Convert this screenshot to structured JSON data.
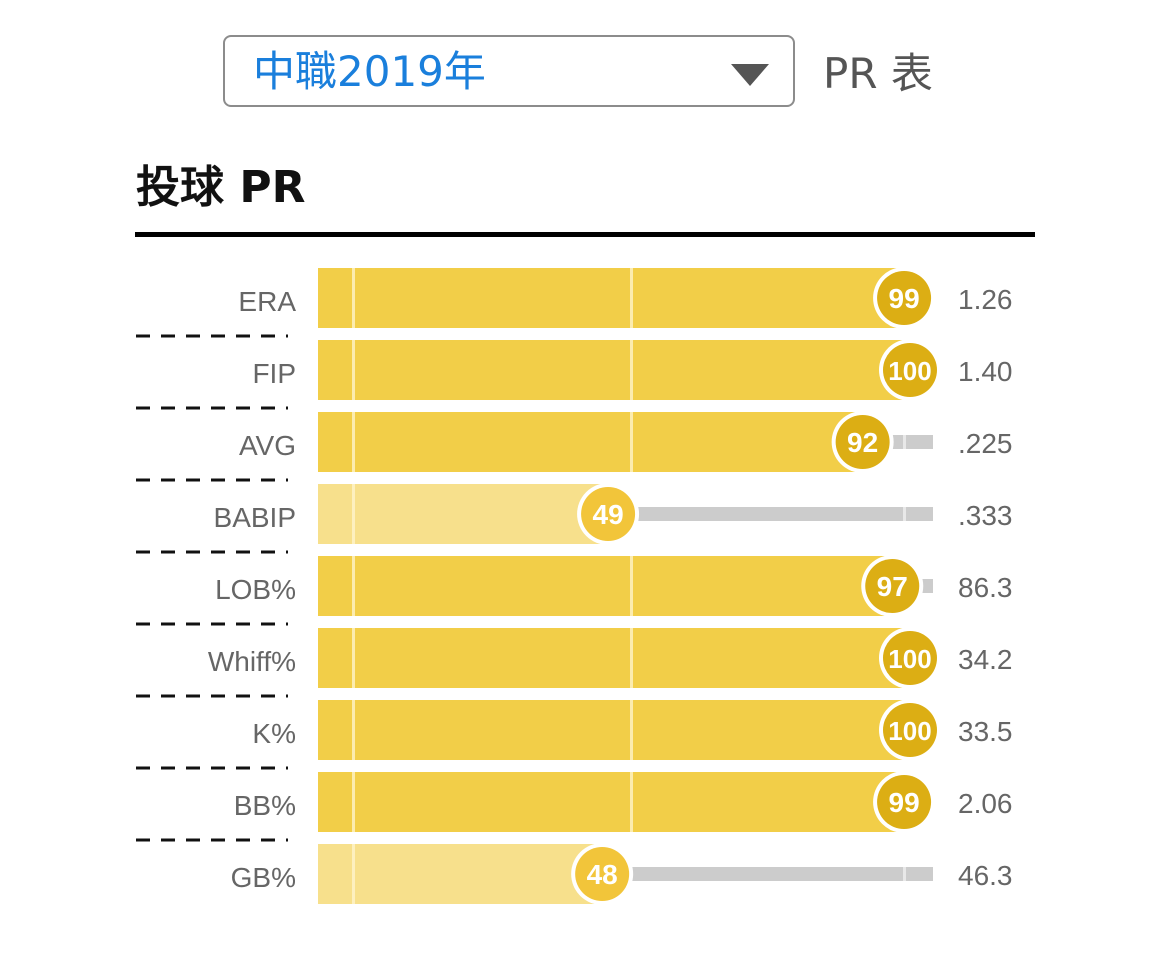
{
  "selector": {
    "value": "中職2019年"
  },
  "header": {
    "table_label": "PR 表"
  },
  "section": {
    "title": "投球 PR"
  },
  "colors": {
    "bar_high": "#f2ce48",
    "bar_low": "#f7e08c",
    "badge_high": "#dcae14",
    "badge_low": "#f2c53a",
    "track": "#cccccc",
    "selector_text": "#1a7fdc"
  },
  "chart_data": {
    "type": "bar",
    "orientation": "horizontal",
    "title": "投球 PR",
    "xlim": [
      0,
      100
    ],
    "categories": [
      "ERA",
      "FIP",
      "AVG",
      "BABIP",
      "LOB%",
      "Whiff%",
      "K%",
      "BB%",
      "GB%"
    ],
    "percentiles": [
      99,
      100,
      92,
      49,
      97,
      100,
      100,
      99,
      48
    ],
    "stat_values": [
      "1.26",
      "1.40",
      ".225",
      ".333",
      "86.3",
      "34.2",
      "33.5",
      "2.06",
      "46.3"
    ]
  }
}
